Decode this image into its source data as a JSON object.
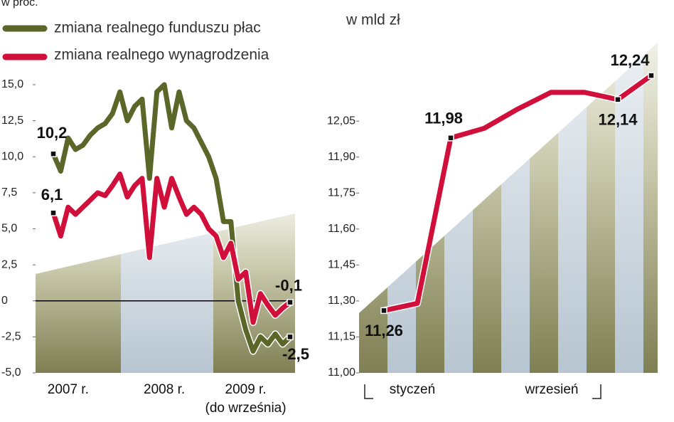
{
  "chart_data": [
    {
      "type": "line",
      "title": "w proc.",
      "categories": [
        null,
        null,
        "2007 r.",
        null,
        null,
        null,
        null,
        null,
        null,
        null,
        null,
        null,
        null,
        null,
        null,
        "2008 r.",
        null,
        null,
        null,
        null,
        null,
        null,
        null,
        null,
        null,
        null,
        "2009 r.",
        null,
        null,
        null,
        null,
        null,
        null
      ],
      "x_note": "(do września)",
      "series": [
        {
          "name": "zmiana realnego funduszu płac",
          "color": "#5b6629",
          "values": [
            10.2,
            9.0,
            11.3,
            10.5,
            10.8,
            11.5,
            12.0,
            12.3,
            13.0,
            14.5,
            12.5,
            13.5,
            14.0,
            8.5,
            14.5,
            15.0,
            12.0,
            14.5,
            12.5,
            12.0,
            11.0,
            10.0,
            8.5,
            5.5,
            5.5,
            0.0,
            -2.0,
            -3.5,
            -2.5,
            -3.0,
            -2.3,
            -3.0,
            -2.5
          ],
          "value_labels": [
            "10,2",
            null,
            null,
            null,
            null,
            null,
            null,
            null,
            null,
            null,
            null,
            null,
            null,
            null,
            null,
            null,
            null,
            null,
            null,
            null,
            null,
            null,
            null,
            null,
            null,
            null,
            null,
            null,
            null,
            null,
            null,
            null,
            "-2,5"
          ]
        },
        {
          "name": "zmiana realnego wynagrodzenia",
          "color": "#d0103a",
          "values": [
            6.1,
            4.5,
            6.5,
            6.0,
            6.5,
            7.0,
            7.5,
            7.3,
            8.0,
            8.8,
            7.2,
            8.0,
            8.5,
            3.0,
            8.5,
            6.5,
            8.5,
            7.2,
            6.0,
            6.5,
            6.0,
            5.0,
            4.5,
            3.0,
            4.0,
            1.5,
            2.0,
            -1.5,
            0.5,
            -0.3,
            -1.0,
            -0.5,
            -0.1
          ],
          "value_labels": [
            "6,1",
            null,
            null,
            null,
            null,
            null,
            null,
            null,
            null,
            null,
            null,
            null,
            null,
            null,
            null,
            null,
            null,
            null,
            null,
            null,
            null,
            null,
            null,
            null,
            null,
            null,
            null,
            null,
            null,
            null,
            null,
            null,
            "-0,1"
          ]
        }
      ],
      "ylim": [
        -5,
        15
      ],
      "yticks": [
        {
          "value": -5,
          "label": "-5,0"
        },
        {
          "value": -2.5,
          "label": "-2,5"
        },
        0,
        {
          "value": 2.5,
          "label": "2,5"
        },
        {
          "value": 5,
          "label": "5,0"
        },
        {
          "value": 7.5,
          "label": "7,5"
        },
        {
          "value": 10,
          "label": "10,0"
        },
        {
          "value": 12.5,
          "label": "12,5"
        },
        {
          "value": 15,
          "label": "15,0"
        }
      ]
    },
    {
      "type": "line",
      "title": "w mld zł",
      "categories": [
        "styczeń",
        null,
        null,
        null,
        null,
        null,
        null,
        null,
        "wrzesień"
      ],
      "series": [
        {
          "name": null,
          "color": "#d0103a",
          "values": [
            11.26,
            11.29,
            11.98,
            12.02,
            12.1,
            12.17,
            12.17,
            12.14,
            12.24
          ],
          "value_labels": [
            "11,26",
            null,
            "11,98",
            null,
            null,
            null,
            null,
            "12,14",
            "12,24"
          ]
        }
      ],
      "ylim": [
        11.0,
        12.38
      ],
      "yticks": [
        {
          "value": 11.0,
          "label": "11,00"
        },
        {
          "value": 11.15,
          "label": "11,15"
        },
        {
          "value": 11.3,
          "label": "11,30"
        },
        {
          "value": 11.45,
          "label": "11,45"
        },
        {
          "value": 11.6,
          "label": "11,60"
        },
        {
          "value": 11.75,
          "label": "11,75"
        },
        {
          "value": 11.9,
          "label": "11,90"
        },
        {
          "value": 12.05,
          "label": "12,05"
        }
      ]
    }
  ]
}
